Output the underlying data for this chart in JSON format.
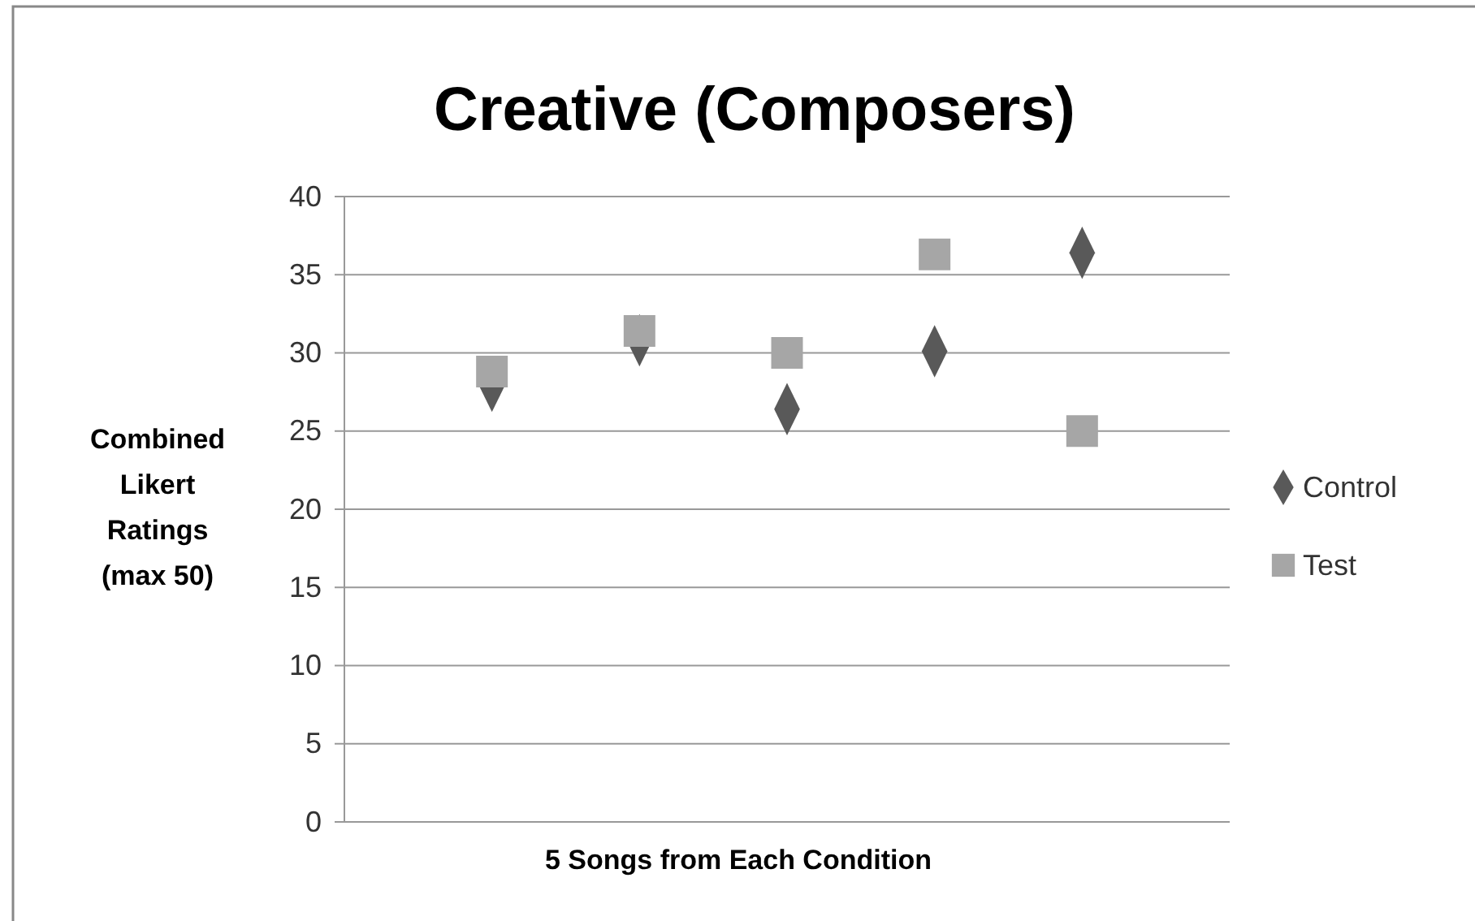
{
  "chart_data": {
    "type": "scatter",
    "title": "Creative (Composers)",
    "xlabel": "5 Songs from Each Condition",
    "ylabel": "Combined Likert Ratings (max 50)",
    "categories": [
      null,
      null,
      null,
      null,
      null
    ],
    "series": [
      {
        "name": "Control",
        "color": "#595959",
        "marker": "diamond",
        "values": [
          27.9,
          30.8,
          26.4,
          30.1,
          36.4
        ]
      },
      {
        "name": "Test",
        "color": "#a6a6a6",
        "marker": "square",
        "values": [
          28.8,
          31.4,
          30,
          36.3,
          25
        ]
      }
    ],
    "ylim": [
      0,
      40
    ],
    "yticks": [
      0,
      5,
      10,
      15,
      20,
      25,
      30,
      35,
      40
    ],
    "grid": "y",
    "legend": "right"
  }
}
